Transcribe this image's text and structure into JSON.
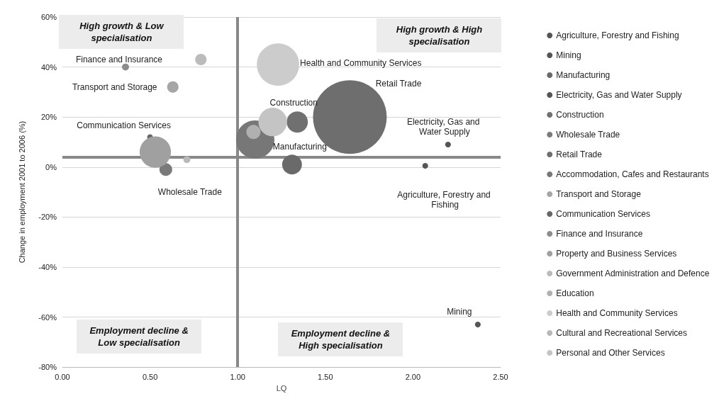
{
  "chart_data": {
    "type": "bubble",
    "xlabel": "LQ",
    "ylabel": "Change in employment 2001 to 2006 (%)",
    "xlim": [
      0,
      2.5
    ],
    "xticks": [
      {
        "value": 0,
        "label": "0.00"
      },
      {
        "value": 0.5,
        "label": "0.50"
      },
      {
        "value": 1,
        "label": "1.00"
      },
      {
        "value": 1.5,
        "label": "1.50"
      },
      {
        "value": 2,
        "label": "2.00"
      },
      {
        "value": 2.5,
        "label": "2.50"
      }
    ],
    "ylim": [
      -80,
      60
    ],
    "yticks": [
      {
        "value": -80,
        "label": "-80%"
      },
      {
        "value": -60,
        "label": "-60%"
      },
      {
        "value": -40,
        "label": "-40%"
      },
      {
        "value": -20,
        "label": "-20%"
      },
      {
        "value": 0,
        "label": "0%"
      },
      {
        "value": 20,
        "label": "20%"
      },
      {
        "value": 40,
        "label": "40%"
      },
      {
        "value": 60,
        "label": "60%"
      }
    ],
    "grid": "y",
    "legend": "right",
    "marker": "circle",
    "series": [
      {
        "name": "Agriculture, Forestry and Fishing",
        "color": "#555555",
        "x": [
          2.07
        ],
        "values": [
          0.5
        ],
        "sizes": [
          0.006
        ]
      },
      {
        "name": "Mining",
        "color": "#555555",
        "x": [
          2.37
        ],
        "values": [
          -63
        ],
        "sizes": [
          0.006
        ]
      },
      {
        "name": "Manufacturing",
        "color": "#6a6a6a",
        "x": [
          1.31
        ],
        "values": [
          1
        ],
        "sizes": [
          0.072
        ]
      },
      {
        "name": "Electricity, Gas and Water Supply",
        "color": "#555555",
        "x": [
          2.2
        ],
        "values": [
          9
        ],
        "sizes": [
          0.006
        ]
      },
      {
        "name": "Construction",
        "color": "#707070",
        "x": [
          1.34
        ],
        "values": [
          18
        ],
        "sizes": [
          0.083
        ]
      },
      {
        "name": "Wholesale Trade",
        "color": "#7a7a7a",
        "x": [
          0.59
        ],
        "values": [
          -1
        ],
        "sizes": [
          0.03
        ]
      },
      {
        "name": "Retail Trade",
        "color": "#6e6e6e",
        "x": [
          1.64
        ],
        "values": [
          20
        ],
        "sizes": [
          1
        ]
      },
      {
        "name": "Accommodation, Cafes and Restaurants",
        "color": "#777777",
        "x": [
          1.1
        ],
        "values": [
          11
        ],
        "sizes": [
          0.27
        ]
      },
      {
        "name": "Transport and Storage",
        "color": "#a6a6a6",
        "x": [
          0.63
        ],
        "values": [
          32
        ],
        "sizes": [
          0.024
        ]
      },
      {
        "name": "Communication Services",
        "color": "#666666",
        "x": [
          0.5
        ],
        "values": [
          12
        ],
        "sizes": [
          0.006
        ]
      },
      {
        "name": "Finance and Insurance",
        "color": "#8c8c8c",
        "x": [
          0.36
        ],
        "values": [
          40
        ],
        "sizes": [
          0.009
        ]
      },
      {
        "name": "Property and Business Services",
        "color": "#a0a0a0",
        "x": [
          0.53
        ],
        "values": [
          6
        ],
        "sizes": [
          0.18
        ]
      },
      {
        "name": "Government Administration and Defence",
        "color": "#bbbbbb",
        "x": [
          0.79
        ],
        "values": [
          43
        ],
        "sizes": [
          0.024
        ]
      },
      {
        "name": "Education",
        "color": "#b0b0b0",
        "x": [
          1.09
        ],
        "values": [
          14
        ],
        "sizes": [
          0.037
        ]
      },
      {
        "name": "Health and Community Services",
        "color": "#cccccc",
        "x": [
          1.23
        ],
        "values": [
          41
        ],
        "sizes": [
          0.33
        ]
      },
      {
        "name": "Cultural and Recreational Services",
        "color": "#b8b8b8",
        "x": [
          0.71
        ],
        "values": [
          3
        ],
        "sizes": [
          0.009
        ]
      },
      {
        "name": "Personal and Other Services",
        "color": "#c4c4c4",
        "x": [
          1.2
        ],
        "values": [
          18
        ],
        "sizes": [
          0.15
        ]
      }
    ],
    "ref_lines": [
      {
        "axis": "y",
        "value": 4,
        "label": null,
        "color": "#888888"
      },
      {
        "axis": "x",
        "value": 1,
        "label": null,
        "color": "#888888"
      }
    ],
    "annotations": [
      "High growth & Low specialisation",
      "High growth & High specialisation",
      "Employment decline & Low specialisation",
      "Employment decline & High specialisation",
      {
        "text": "Finance and Insurance",
        "x": 0.36,
        "y": 40
      },
      {
        "text": "Transport and Storage",
        "x": 0.63,
        "y": 32
      },
      {
        "text": "Communication Services",
        "x": 0.5,
        "y": 12
      },
      {
        "text": "Wholesale Trade",
        "x": 0.59,
        "y": -1
      },
      {
        "text": "Health and Community Services",
        "x": 1.23,
        "y": 41
      },
      "Retail Trade",
      {
        "text": "Construction",
        "x": 1.34,
        "y": 18
      },
      {
        "text": "Manufacturing",
        "x": 1.31,
        "y": 1
      },
      {
        "text": "Electricity, Gas and Water Supply",
        "x": 2.2,
        "y": 9
      },
      {
        "text": "Agriculture, Forestry and Fishing",
        "x": 2.07,
        "y": 0.5
      },
      {
        "text": "Mining",
        "x": 2.37,
        "y": -63
      }
    ]
  }
}
